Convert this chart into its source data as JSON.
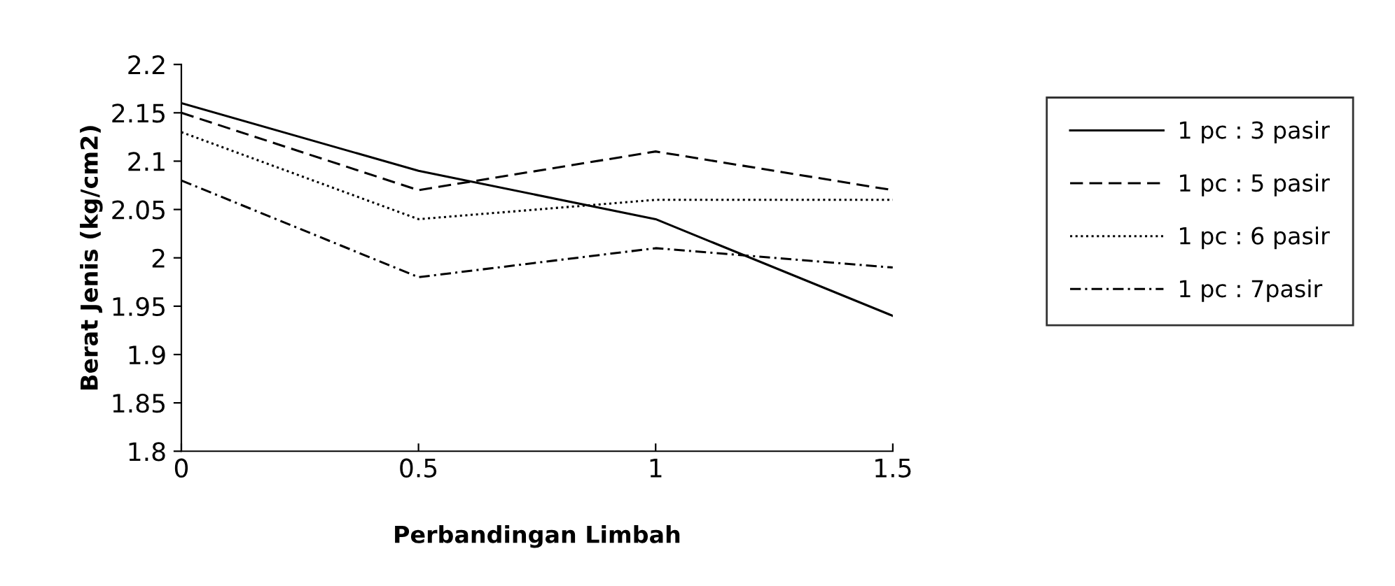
{
  "chart_data": {
    "type": "line",
    "xlabel": "Perbandingan Limbah",
    "ylabel": "Berat Jenis (kg/cm2)",
    "x": [
      0,
      0.5,
      1,
      1.5
    ],
    "series": [
      {
        "name": "1 pc : 3 pasir",
        "color": "#000000",
        "line_style": "solid",
        "values": [
          2.16,
          2.09,
          2.04,
          1.94
        ]
      },
      {
        "name": "1 pc : 5 pasir",
        "color": "#000000",
        "line_style": "dashed",
        "values": [
          2.15,
          2.07,
          2.11,
          2.07
        ]
      },
      {
        "name": "1 pc : 6 pasir",
        "color": "#000000",
        "line_style": "dotted",
        "values": [
          2.13,
          2.04,
          2.06,
          2.06
        ]
      },
      {
        "name": "1 pc : 7pasir",
        "color": "#000000",
        "line_style": "dashdot",
        "values": [
          2.08,
          1.98,
          2.01,
          1.99
        ]
      }
    ],
    "xlim": [
      0,
      1.5
    ],
    "xticks": [
      0,
      0.5,
      1,
      1.5
    ],
    "ylim": [
      1.8,
      2.2
    ],
    "yticks": [
      1.8,
      1.85,
      1.9,
      1.95,
      2,
      2.05,
      2.1,
      2.15,
      2.2
    ],
    "grid": false,
    "legend": "right",
    "marker": "none"
  }
}
